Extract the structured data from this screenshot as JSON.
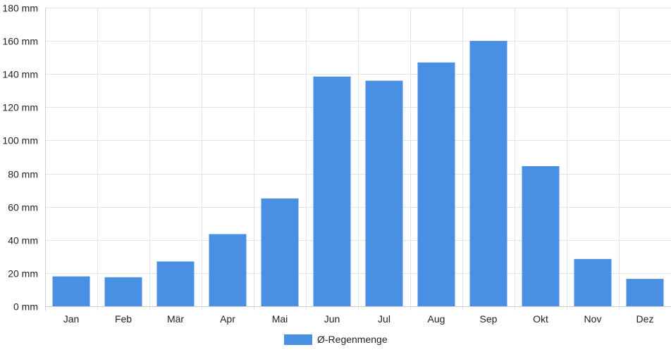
{
  "chart_data": {
    "type": "bar",
    "categories": [
      "Jan",
      "Feb",
      "Mär",
      "Apr",
      "Mai",
      "Jun",
      "Jul",
      "Aug",
      "Sep",
      "Okt",
      "Nov",
      "Dez"
    ],
    "series": [
      {
        "name": "Ø-Regenmenge",
        "values": [
          18,
          17.5,
          27,
          43.5,
          65,
          138.5,
          136,
          147,
          160,
          84.5,
          28.5,
          16.5
        ]
      }
    ],
    "ylim": [
      0,
      180
    ],
    "yticks": [
      0,
      20,
      40,
      60,
      80,
      100,
      120,
      140,
      160,
      180
    ],
    "y_unit_suffix": " mm",
    "grid": true,
    "legend_position": "bottom",
    "bar_color": "#4a90e2"
  }
}
